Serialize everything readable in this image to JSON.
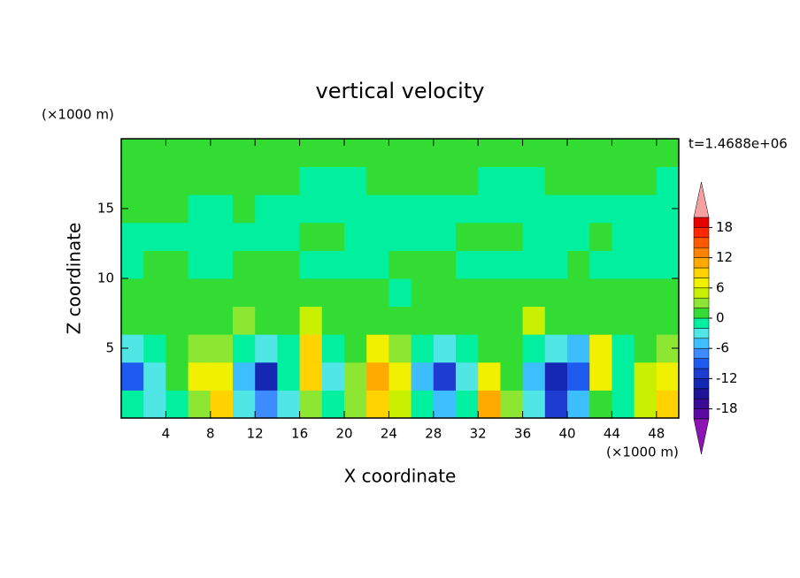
{
  "chart_data": {
    "type": "contour",
    "title": "vertical velocity",
    "x_label": "X coordinate",
    "y_label": "Z coordinate",
    "x_unit": "(×1000 m)",
    "y_unit": "(×1000 m)",
    "time_label": "t=1.4688e+06",
    "xlim": [
      0,
      50
    ],
    "ylim": [
      0,
      20
    ],
    "xticks": [
      4,
      8,
      12,
      16,
      20,
      24,
      28,
      32,
      36,
      40,
      44,
      48
    ],
    "yticks": [
      5,
      10,
      15
    ],
    "x": [
      1,
      3,
      5,
      7,
      9,
      11,
      13,
      15,
      17,
      19,
      21,
      23,
      25,
      27,
      29,
      31,
      33,
      35,
      37,
      39,
      41,
      43,
      45,
      47,
      49
    ],
    "y": [
      1,
      3,
      5,
      7,
      9,
      11,
      13,
      15,
      17,
      19
    ],
    "z": [
      [
        -1,
        -4,
        -2,
        3,
        8,
        -3,
        -8,
        -3,
        3,
        -2,
        3,
        8,
        5,
        -2,
        -6,
        -2,
        10,
        3,
        -4,
        -12,
        -6,
        1,
        -1,
        5,
        9
      ],
      [
        -10,
        -3,
        1,
        6,
        6,
        -6,
        -14,
        -2,
        8,
        -4,
        3,
        11,
        6,
        -6,
        -12,
        -4,
        6,
        1,
        -6,
        -14,
        -10,
        6,
        -1,
        4,
        7
      ],
      [
        -3,
        -1,
        1,
        2,
        2,
        -2,
        -4,
        -1,
        8,
        -2,
        1,
        6,
        3,
        -2,
        -4,
        -1,
        1,
        1,
        -2,
        -4,
        -6,
        6,
        -1,
        1,
        2
      ],
      [
        1,
        1,
        1,
        1,
        1,
        3,
        1,
        1,
        4,
        1,
        1,
        1,
        1,
        1,
        1,
        1,
        1,
        1,
        4,
        1,
        1,
        1,
        1,
        1,
        1
      ],
      [
        1,
        1,
        1,
        1,
        1,
        1,
        1,
        1,
        1,
        1,
        1,
        1,
        -1,
        1,
        1,
        1,
        1,
        1,
        1,
        1,
        1,
        1,
        1,
        1,
        1
      ],
      [
        -1,
        1,
        1,
        -1,
        -1,
        1,
        1,
        1,
        -1,
        -1,
        -1,
        -1,
        1,
        1,
        1,
        -1,
        -1,
        -1,
        -1,
        -1,
        1,
        -1,
        -1,
        -1,
        -1
      ],
      [
        -1,
        -1,
        -1,
        -1,
        -1,
        -1,
        -1,
        -1,
        1,
        1,
        -1,
        -1,
        -1,
        -1,
        -1,
        1,
        1,
        1,
        -1,
        -1,
        -1,
        1,
        -1,
        -1,
        -1
      ],
      [
        1,
        1,
        1,
        -1,
        -1,
        1,
        -1,
        -1,
        -1,
        -1,
        -1,
        -1,
        -1,
        -1,
        -1,
        -1,
        -1,
        -1,
        -1,
        -1,
        -1,
        -1,
        -1,
        -1,
        -1
      ],
      [
        1,
        1,
        1,
        1,
        1,
        1,
        1,
        1,
        -1,
        -1,
        -1,
        1,
        1,
        1,
        1,
        1,
        -1,
        -1,
        -1,
        1,
        1,
        1,
        1,
        1,
        -1
      ],
      [
        1,
        1,
        1,
        1,
        1,
        1,
        1,
        1,
        1,
        1,
        1,
        1,
        1,
        1,
        1,
        1,
        1,
        1,
        1,
        1,
        1,
        1,
        1,
        1,
        1
      ]
    ],
    "levels": [
      -20,
      -18,
      -16,
      -14,
      -12,
      -10,
      -8,
      -6,
      -4,
      -2,
      0,
      2,
      4,
      6,
      8,
      10,
      12,
      14,
      16,
      18,
      20
    ],
    "colors": [
      "#5a0aa0",
      "#3c0a96",
      "#1e1496",
      "#1428b4",
      "#1e3cd2",
      "#1e5af0",
      "#3c8cff",
      "#3cbeff",
      "#50e6e6",
      "#00f0a0",
      "#32dc32",
      "#8ce632",
      "#c8f000",
      "#f0f000",
      "#ffd200",
      "#ffaa00",
      "#ff8200",
      "#ff5a00",
      "#ff2800",
      "#e60000"
    ],
    "extend_colors": [
      "#8c14b4",
      "#f5a0a0"
    ],
    "colorbar_ticks": [
      -18,
      -12,
      -6,
      0,
      6,
      12,
      18
    ]
  }
}
